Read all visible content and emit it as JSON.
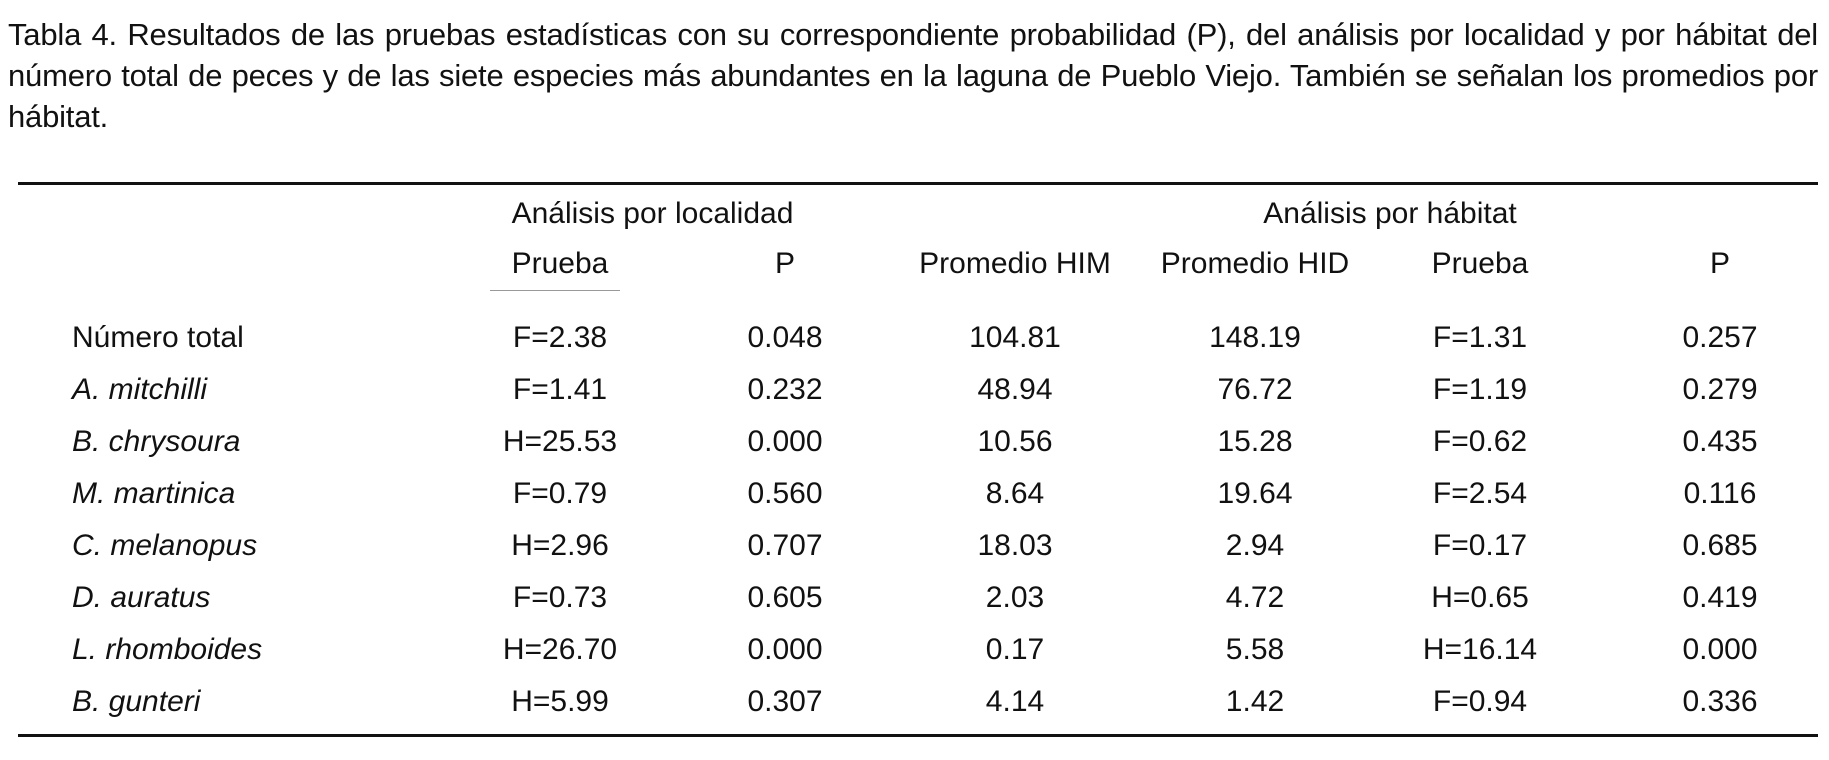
{
  "caption": "Tabla 4. Resultados de las pruebas estadísticas con su correspondiente probabilidad (P), del análisis por localidad y por hábitat del número total de peces y de las siete especies más abundantes en la laguna de Pueblo Viejo. También se señalan los promedios por hábitat.",
  "table": {
    "group_headers": {
      "localidad": "Análisis por localidad",
      "habitat": "Análisis por hábitat"
    },
    "columns": {
      "prueba_loc": "Prueba",
      "p_loc": "P",
      "promedio_him": "Promedio HIM",
      "promedio_hid": "Promedio HID",
      "prueba_hab": "Prueba",
      "p_hab": "P"
    },
    "rows": [
      {
        "name": "Número total",
        "italic": false,
        "prueba_loc": "F=2.38",
        "p_loc": "0.048",
        "him": "104.81",
        "hid": "148.19",
        "prueba_hab": "F=1.31",
        "p_hab": "0.257"
      },
      {
        "name": "A. mitchilli",
        "italic": true,
        "prueba_loc": "F=1.41",
        "p_loc": "0.232",
        "him": "48.94",
        "hid": "76.72",
        "prueba_hab": "F=1.19",
        "p_hab": "0.279"
      },
      {
        "name": "B. chrysoura",
        "italic": true,
        "prueba_loc": "H=25.53",
        "p_loc": "0.000",
        "him": "10.56",
        "hid": "15.28",
        "prueba_hab": "F=0.62",
        "p_hab": "0.435"
      },
      {
        "name": "M. martinica",
        "italic": true,
        "prueba_loc": "F=0.79",
        "p_loc": "0.560",
        "him": "8.64",
        "hid": "19.64",
        "prueba_hab": "F=2.54",
        "p_hab": "0.116"
      },
      {
        "name": "C. melanopus",
        "italic": true,
        "prueba_loc": "H=2.96",
        "p_loc": "0.707",
        "him": "18.03",
        "hid": "2.94",
        "prueba_hab": "F=0.17",
        "p_hab": "0.685"
      },
      {
        "name": "D. auratus",
        "italic": true,
        "prueba_loc": "F=0.73",
        "p_loc": "0.605",
        "him": "2.03",
        "hid": "4.72",
        "prueba_hab": "H=0.65",
        "p_hab": "0.419"
      },
      {
        "name": "L. rhomboides",
        "italic": true,
        "prueba_loc": "H=26.70",
        "p_loc": "0.000",
        "him": "0.17",
        "hid": "5.58",
        "prueba_hab": "H=16.14",
        "p_hab": "0.000"
      },
      {
        "name": "B. gunteri",
        "italic": true,
        "prueba_loc": "H=5.99",
        "p_loc": "0.307",
        "him": "4.14",
        "hid": "1.42",
        "prueba_hab": "F=0.94",
        "p_hab": "0.336"
      }
    ]
  }
}
